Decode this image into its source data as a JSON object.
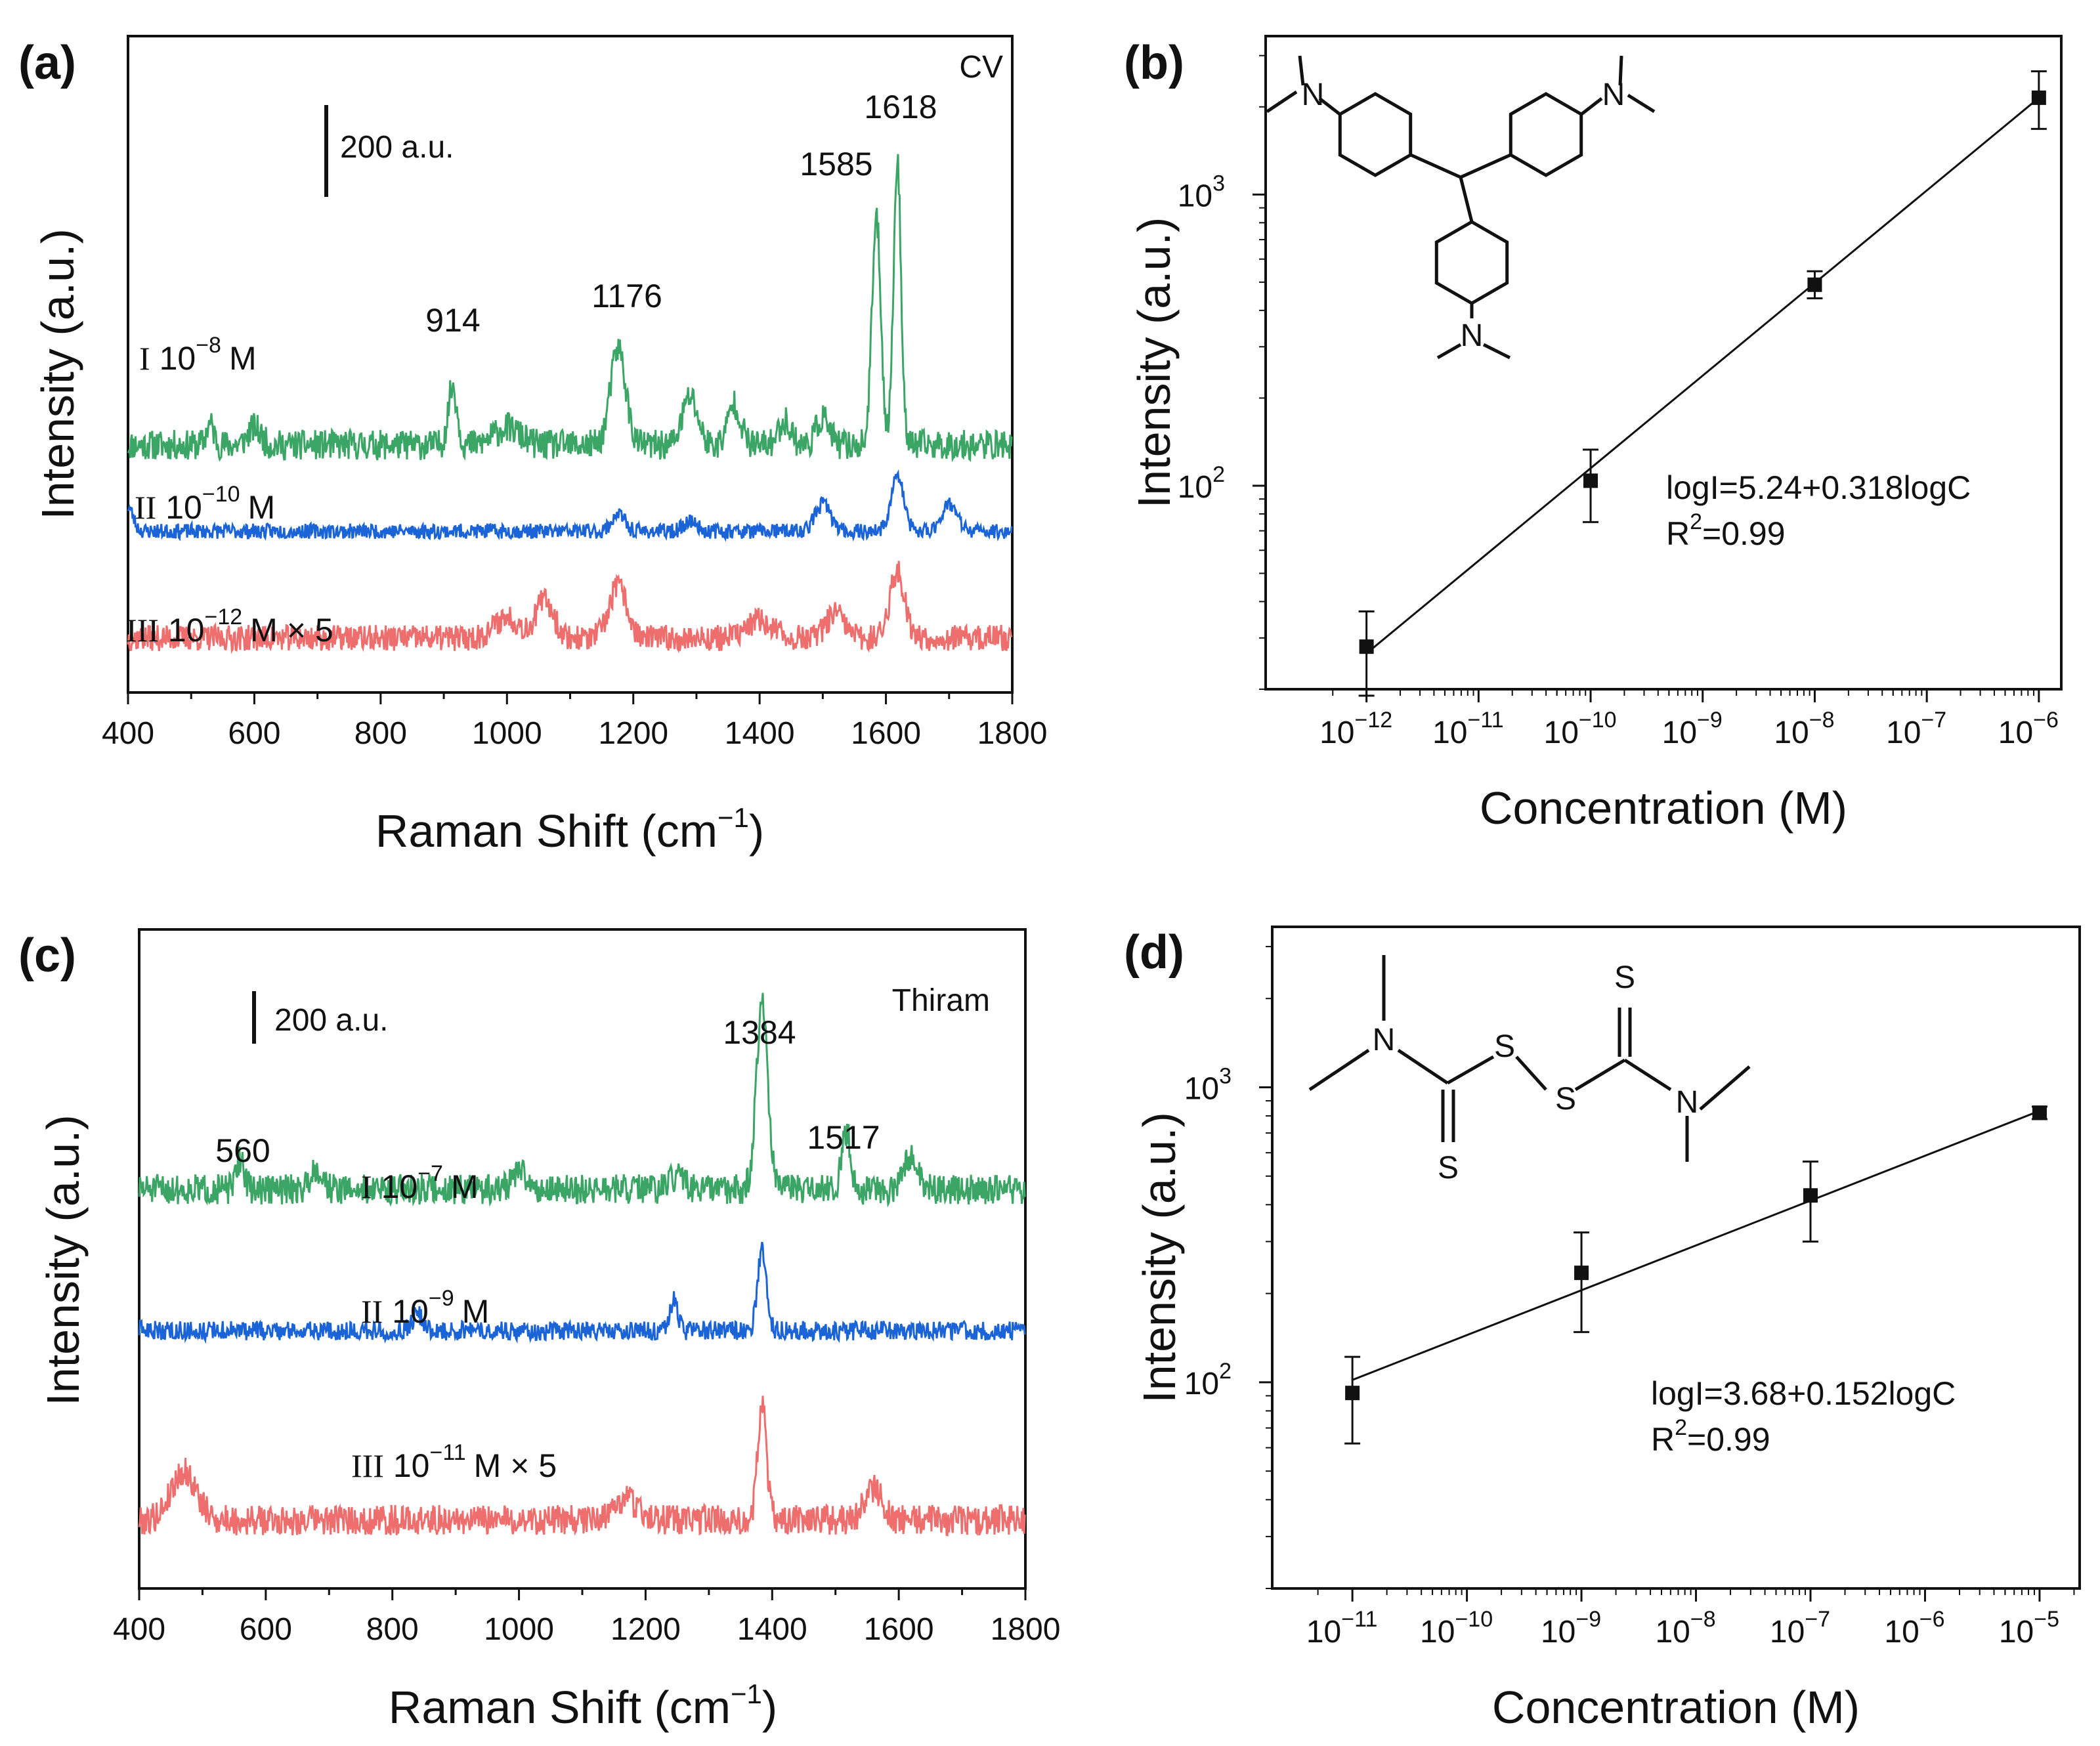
{
  "colors": {
    "green": "#3aa564",
    "blue": "#1a64d8",
    "red": "#ee6d6d",
    "axis": "#111111"
  },
  "chart_data": [
    {
      "panel": "(a)",
      "type": "line",
      "analyte": "CV",
      "xlabel": "Raman Shift (cm",
      "xlabel_sup": "−1",
      "xlabel_end": ")",
      "ylabel": "Intensity (a.u.)",
      "xlim": [
        400,
        1800
      ],
      "xticks": [
        "400",
        "600",
        "800",
        "1000",
        "1200",
        "1400",
        "1600",
        "1800"
      ],
      "scale_bar": "200 a.u.",
      "peaks": [
        {
          "x": 914,
          "label": "914"
        },
        {
          "x": 1176,
          "label": "1176"
        },
        {
          "x": 1585,
          "label": "1585"
        },
        {
          "x": 1618,
          "label": "1618"
        }
      ],
      "series": [
        {
          "roman": "I",
          "conc": "10",
          "exp": "−8",
          "unit": "M",
          "mult": "",
          "color": "green",
          "baseline": 340,
          "noise": 22,
          "seed": 11,
          "peaks": [
            [
              530,
              30,
              6
            ],
            [
              600,
              25,
              10
            ],
            [
              914,
              85,
              7
            ],
            [
              1000,
              25,
              20
            ],
            [
              1176,
              140,
              12
            ],
            [
              1290,
              70,
              12
            ],
            [
              1360,
              60,
              10
            ],
            [
              1440,
              35,
              10
            ],
            [
              1500,
              40,
              10
            ],
            [
              1585,
              330,
              7
            ],
            [
              1618,
              410,
              6
            ]
          ]
        },
        {
          "roman": "II",
          "conc": "10",
          "exp": "−10",
          "unit": "M",
          "mult": "",
          "color": "blue",
          "baseline": 215,
          "noise": 11,
          "seed": 23,
          "peaks": [
            [
              400,
              35,
              8
            ],
            [
              1176,
              25,
              10
            ],
            [
              1290,
              15,
              10
            ],
            [
              1500,
              40,
              12
            ],
            [
              1618,
              80,
              10
            ],
            [
              1700,
              40,
              12
            ]
          ]
        },
        {
          "roman": "III",
          "conc": "10",
          "exp": "−12",
          "unit": "M",
          "mult": "× 5",
          "color": "red",
          "baseline": 60,
          "noise": 19,
          "seed": 37,
          "peaks": [
            [
              1060,
              55,
              14
            ],
            [
              1000,
              30,
              20
            ],
            [
              1176,
              75,
              14
            ],
            [
              1400,
              25,
              20
            ],
            [
              1520,
              35,
              14
            ],
            [
              1618,
              95,
              12
            ]
          ]
        }
      ]
    },
    {
      "panel": "(b)",
      "type": "scatter",
      "xlabel": "Concentration (M)",
      "ylabel": "Intensity (a.u.)",
      "x_log": true,
      "xlim_exp": [
        -12.9,
        -5.8
      ],
      "ylim": [
        20,
        3500
      ],
      "xtick_exps": [
        "−12",
        "−11",
        "−10",
        "−9",
        "−8",
        "−7",
        "−6"
      ],
      "ytick_exps": [
        "2",
        "3"
      ],
      "equation": "logI=5.24+0.318logC",
      "r2_prefix": "R",
      "r2_sup": "2",
      "r2_value": "=0.99",
      "fit": {
        "intercept": 5.24,
        "slope": 0.318
      },
      "points": [
        {
          "x_exp": -12,
          "y": 28,
          "err_lo": 19,
          "err_hi": 37
        },
        {
          "x_exp": -10,
          "y": 104,
          "err_lo": 75,
          "err_hi": 133
        },
        {
          "x_exp": -8,
          "y": 490,
          "err_lo": 440,
          "err_hi": 545
        },
        {
          "x_exp": -6,
          "y": 2150,
          "err_lo": 1680,
          "err_hi": 2650
        }
      ],
      "structure_atoms": [
        "N",
        "N",
        "N"
      ]
    },
    {
      "panel": "(c)",
      "type": "line",
      "analyte": "Thiram",
      "xlabel": "Raman Shift (cm",
      "xlabel_sup": "−1",
      "xlabel_end": ")",
      "ylabel": "Intensity (a.u.)",
      "xlim": [
        400,
        1800
      ],
      "xticks": [
        "400",
        "600",
        "800",
        "1000",
        "1200",
        "1400",
        "1600",
        "1800"
      ],
      "scale_bar": "200 a.u.",
      "peaks": [
        {
          "x": 560,
          "label": "560"
        },
        {
          "x": 1384,
          "label": "1384"
        },
        {
          "x": 1517,
          "label": "1517"
        }
      ],
      "series": [
        {
          "roman": "I",
          "conc": "10",
          "exp": "−7",
          "unit": "M",
          "mult": "",
          "color": "green",
          "baseline": 560,
          "noise": 22,
          "seed": 51,
          "peaks": [
            [
              560,
              45,
              6
            ],
            [
              680,
              30,
              10
            ],
            [
              1000,
              25,
              12
            ],
            [
              1250,
              20,
              10
            ],
            [
              1384,
              270,
              9
            ],
            [
              1517,
              85,
              7
            ],
            [
              1620,
              50,
              10
            ]
          ]
        },
        {
          "roman": "II",
          "conc": "10",
          "exp": "−9",
          "unit": "M",
          "mult": "",
          "color": "blue",
          "baseline": 355,
          "noise": 14,
          "seed": 63,
          "peaks": [
            [
              840,
              25,
              8
            ],
            [
              1245,
              45,
              6
            ],
            [
              1384,
              115,
              7
            ]
          ]
        },
        {
          "roman": "III",
          "conc": "10",
          "exp": "−11",
          "unit": "M",
          "mult": "× 5",
          "color": "red",
          "baseline": 80,
          "noise": 22,
          "seed": 79,
          "peaks": [
            [
              470,
              70,
              20
            ],
            [
              1170,
              30,
              20
            ],
            [
              1384,
              170,
              7
            ],
            [
              1560,
              45,
              14
            ]
          ]
        }
      ]
    },
    {
      "panel": "(d)",
      "type": "scatter",
      "xlabel": "Concentration (M)",
      "ylabel": "Intensity (a.u.)",
      "x_log": true,
      "xlim_exp": [
        -11.7,
        -4.65
      ],
      "ylim": [
        20,
        3500
      ],
      "xtick_exps": [
        "−11",
        "−10",
        "−9",
        "−8",
        "−7",
        "−6",
        "−5"
      ],
      "ytick_exps": [
        "2",
        "3"
      ],
      "equation": "logI=3.68+0.152logC",
      "r2_prefix": "R",
      "r2_sup": "2",
      "r2_value": "=0.99",
      "fit": {
        "intercept": 3.68,
        "slope": 0.152
      },
      "points": [
        {
          "x_exp": -11,
          "y": 92,
          "err_lo": 62,
          "err_hi": 122
        },
        {
          "x_exp": -9,
          "y": 235,
          "err_lo": 148,
          "err_hi": 322
        },
        {
          "x_exp": -7,
          "y": 430,
          "err_lo": 300,
          "err_hi": 560
        },
        {
          "x_exp": -5,
          "y": 820,
          "err_lo": 780,
          "err_hi": 860
        }
      ],
      "structure_atoms": [
        "N",
        "S",
        "S",
        "S",
        "N",
        "S"
      ]
    }
  ]
}
